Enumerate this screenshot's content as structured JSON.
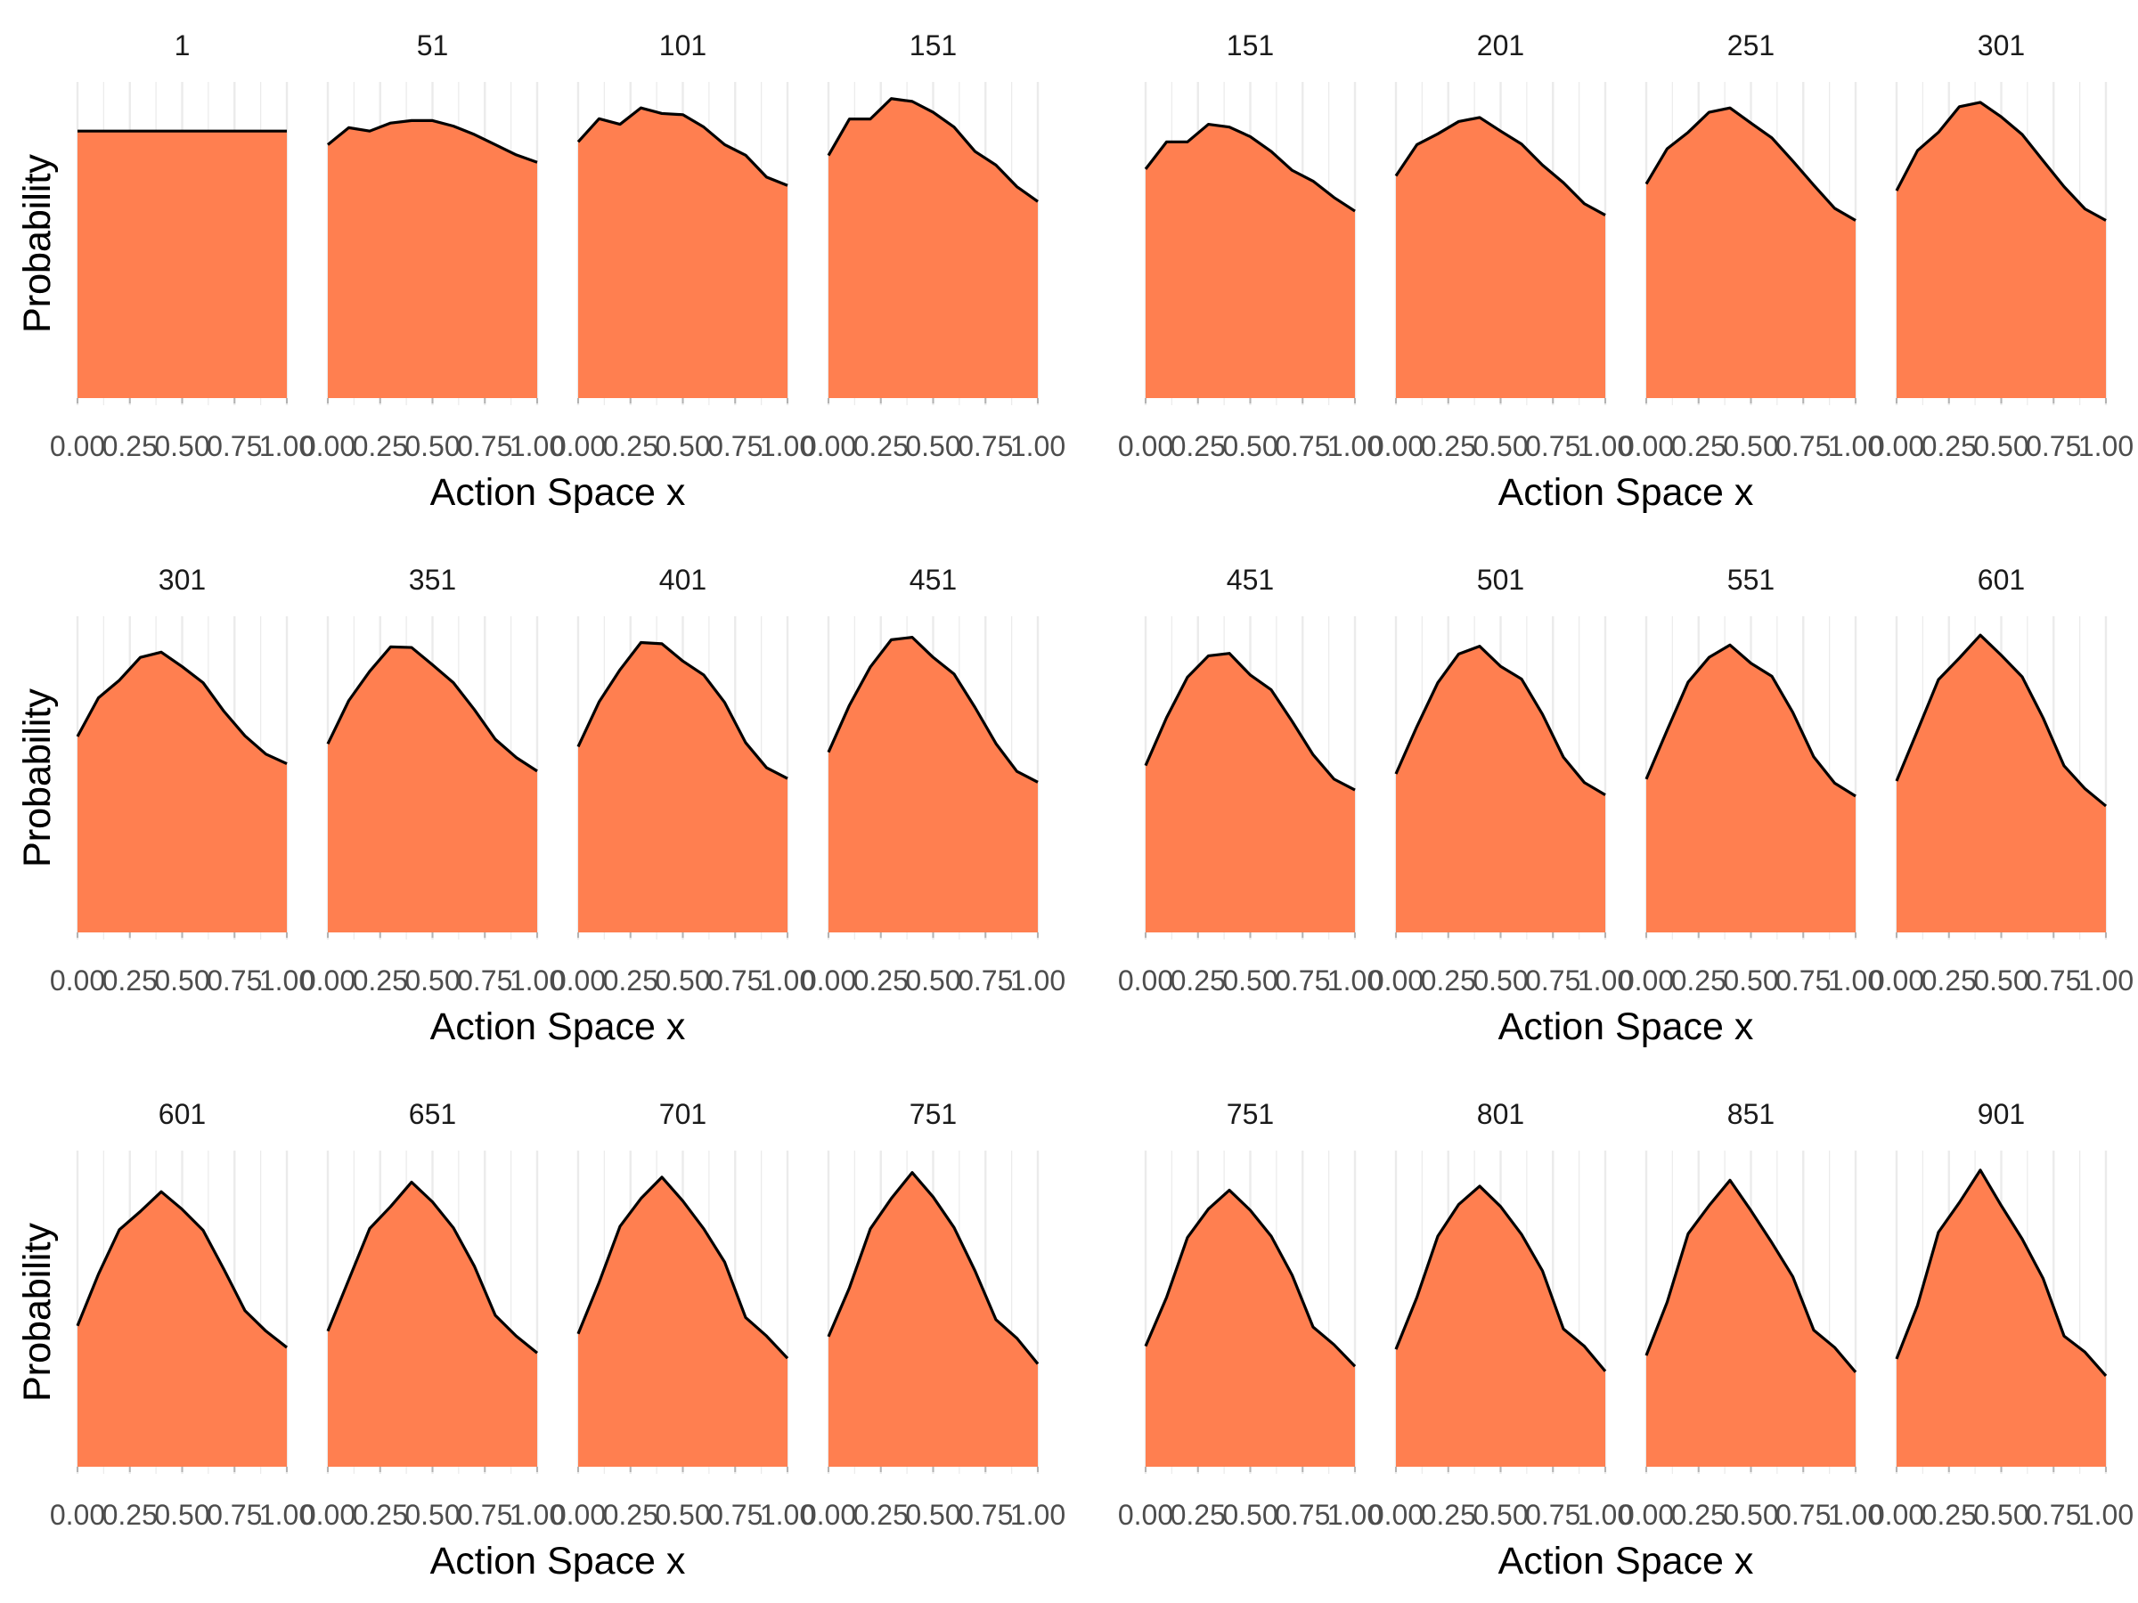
{
  "colors": {
    "fill": "#FF7F50",
    "line": "#000000",
    "grid": "#EBEBEB",
    "background": "#FFFFFF"
  },
  "chart_data": [
    {
      "type": "area",
      "xlabel": "Action Space x",
      "ylabel": "Probability",
      "x": [
        0,
        0.1,
        0.2,
        0.3,
        0.4,
        0.5,
        0.6,
        0.7,
        0.8,
        0.9,
        1.0
      ],
      "xticks": [
        "0.00",
        "0.25",
        "0.50",
        "0.75",
        "1.00"
      ],
      "xlim": [
        0,
        1
      ],
      "ylim": [
        0,
        1
      ],
      "grid": "vertical",
      "panels": [
        {
          "label": "1",
          "values": [
            0.864,
            0.864,
            0.864,
            0.864,
            0.864,
            0.864,
            0.864,
            0.864,
            0.864,
            0.864,
            0.864
          ]
        },
        {
          "label": "51",
          "values": [
            0.82,
            0.875,
            0.864,
            0.89,
            0.898,
            0.898,
            0.88,
            0.853,
            0.82,
            0.787,
            0.763
          ]
        },
        {
          "label": "101",
          "values": [
            0.829,
            0.904,
            0.886,
            0.939,
            0.921,
            0.917,
            0.877,
            0.82,
            0.786,
            0.715,
            0.688
          ]
        },
        {
          "label": "151",
          "values": [
            0.785,
            0.903,
            0.903,
            0.969,
            0.96,
            0.925,
            0.877,
            0.798,
            0.754,
            0.684,
            0.636
          ]
        }
      ]
    },
    {
      "type": "area",
      "xlabel": "Action Space x",
      "ylabel": "Probability",
      "x": [
        0,
        0.1,
        0.2,
        0.3,
        0.4,
        0.5,
        0.6,
        0.7,
        0.8,
        0.9,
        1.0
      ],
      "xticks": [
        "0.00",
        "0.25",
        "0.50",
        "0.75",
        "1.00"
      ],
      "xlim": [
        0,
        1
      ],
      "ylim": [
        0,
        1
      ],
      "grid": "vertical",
      "panels": [
        {
          "label": "151",
          "values": [
            0.741,
            0.829,
            0.829,
            0.886,
            0.877,
            0.846,
            0.798,
            0.737,
            0.702,
            0.649,
            0.605
          ]
        },
        {
          "label": "201",
          "values": [
            0.719,
            0.82,
            0.855,
            0.895,
            0.908,
            0.864,
            0.822,
            0.754,
            0.697,
            0.629,
            0.592
          ]
        },
        {
          "label": "251",
          "values": [
            0.693,
            0.807,
            0.86,
            0.925,
            0.939,
            0.89,
            0.842,
            0.767,
            0.689,
            0.614,
            0.575
          ]
        },
        {
          "label": "301",
          "values": [
            0.671,
            0.801,
            0.86,
            0.943,
            0.957,
            0.91,
            0.853,
            0.768,
            0.684,
            0.612,
            0.575
          ]
        }
      ]
    },
    {
      "type": "area",
      "xlabel": "Action Space x",
      "ylabel": "Probability",
      "x": [
        0,
        0.1,
        0.2,
        0.3,
        0.4,
        0.5,
        0.6,
        0.7,
        0.8,
        0.9,
        1.0
      ],
      "xticks": [
        "0.00",
        "0.25",
        "0.50",
        "0.75",
        "1.00"
      ],
      "xlim": [
        0,
        1
      ],
      "ylim": [
        0,
        1
      ],
      "grid": "vertical",
      "panels": [
        {
          "label": "301",
          "values": [
            0.634,
            0.759,
            0.816,
            0.89,
            0.907,
            0.86,
            0.808,
            0.715,
            0.636,
            0.577,
            0.546
          ]
        },
        {
          "label": "351",
          "values": [
            0.61,
            0.75,
            0.845,
            0.924,
            0.922,
            0.866,
            0.808,
            0.721,
            0.625,
            0.566,
            0.522
          ]
        },
        {
          "label": "401",
          "values": [
            0.601,
            0.746,
            0.85,
            0.938,
            0.934,
            0.878,
            0.833,
            0.744,
            0.614,
            0.533,
            0.498
          ]
        },
        {
          "label": "451",
          "values": [
            0.583,
            0.735,
            0.859,
            0.947,
            0.955,
            0.89,
            0.836,
            0.728,
            0.611,
            0.521,
            0.486
          ]
        }
      ]
    },
    {
      "type": "area",
      "xlabel": "Action Space x",
      "ylabel": "Probability",
      "x": [
        0,
        0.1,
        0.2,
        0.3,
        0.4,
        0.5,
        0.6,
        0.7,
        0.8,
        0.9,
        1.0
      ],
      "xticks": [
        "0.00",
        "0.25",
        "0.50",
        "0.75",
        "1.00"
      ],
      "xlim": [
        0,
        1
      ],
      "ylim": [
        0,
        1
      ],
      "grid": "vertical",
      "panels": [
        {
          "label": "451",
          "values": [
            0.54,
            0.695,
            0.826,
            0.895,
            0.903,
            0.833,
            0.785,
            0.683,
            0.575,
            0.496,
            0.461
          ]
        },
        {
          "label": "501",
          "values": [
            0.513,
            0.666,
            0.808,
            0.901,
            0.926,
            0.861,
            0.82,
            0.706,
            0.567,
            0.485,
            0.445
          ]
        },
        {
          "label": "551",
          "values": [
            0.496,
            0.655,
            0.81,
            0.89,
            0.93,
            0.871,
            0.829,
            0.712,
            0.568,
            0.483,
            0.441
          ]
        },
        {
          "label": "601",
          "values": [
            0.49,
            0.653,
            0.818,
            0.888,
            0.962,
            0.897,
            0.827,
            0.694,
            0.539,
            0.465,
            0.409
          ]
        }
      ]
    },
    {
      "type": "area",
      "xlabel": "Action Space x",
      "ylabel": "Probability",
      "x": [
        0,
        0.1,
        0.2,
        0.3,
        0.4,
        0.5,
        0.6,
        0.7,
        0.8,
        0.9,
        1.0
      ],
      "xticks": [
        "0.00",
        "0.25",
        "0.50",
        "0.75",
        "1.00"
      ],
      "xlim": [
        0,
        1
      ],
      "ylim": [
        0,
        1
      ],
      "grid": "vertical",
      "panels": [
        {
          "label": "601",
          "values": [
            0.456,
            0.623,
            0.767,
            0.826,
            0.89,
            0.833,
            0.765,
            0.638,
            0.505,
            0.439,
            0.386
          ]
        },
        {
          "label": "651",
          "values": [
            0.439,
            0.605,
            0.771,
            0.842,
            0.921,
            0.857,
            0.773,
            0.649,
            0.49,
            0.423,
            0.368
          ]
        },
        {
          "label": "701",
          "values": [
            0.43,
            0.596,
            0.778,
            0.868,
            0.937,
            0.86,
            0.77,
            0.662,
            0.483,
            0.423,
            0.351
          ]
        },
        {
          "label": "751",
          "values": [
            0.421,
            0.579,
            0.77,
            0.868,
            0.952,
            0.873,
            0.774,
            0.634,
            0.476,
            0.416,
            0.333
          ]
        }
      ]
    },
    {
      "type": "area",
      "xlabel": "Action Space x",
      "ylabel": "Probability",
      "x": [
        0,
        0.1,
        0.2,
        0.3,
        0.4,
        0.5,
        0.6,
        0.7,
        0.8,
        0.9,
        1.0
      ],
      "xticks": [
        "0.00",
        "0.25",
        "0.50",
        "0.75",
        "1.00"
      ],
      "xlim": [
        0,
        1
      ],
      "ylim": [
        0,
        1
      ],
      "grid": "vertical",
      "panels": [
        {
          "label": "751",
          "values": [
            0.39,
            0.548,
            0.742,
            0.834,
            0.895,
            0.83,
            0.746,
            0.62,
            0.452,
            0.395,
            0.325
          ]
        },
        {
          "label": "801",
          "values": [
            0.38,
            0.548,
            0.746,
            0.849,
            0.908,
            0.842,
            0.752,
            0.634,
            0.446,
            0.39,
            0.309
          ]
        },
        {
          "label": "851",
          "values": [
            0.36,
            0.533,
            0.754,
            0.845,
            0.927,
            0.829,
            0.725,
            0.615,
            0.442,
            0.386,
            0.306
          ]
        },
        {
          "label": "901",
          "values": [
            0.349,
            0.522,
            0.759,
            0.855,
            0.96,
            0.845,
            0.737,
            0.609,
            0.423,
            0.371,
            0.294
          ]
        }
      ]
    }
  ]
}
